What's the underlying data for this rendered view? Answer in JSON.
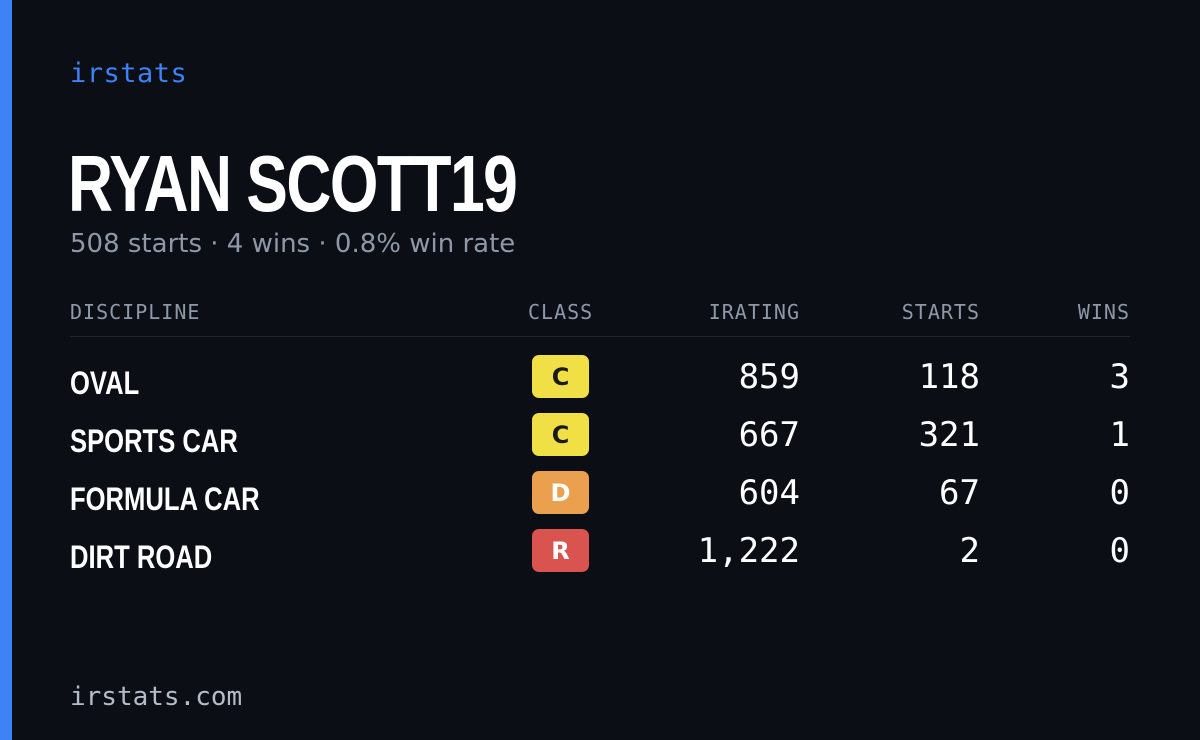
{
  "brand": "irstats",
  "accent_color": "#3d82f6",
  "player": {
    "name": "RYAN SCOTT19",
    "summary": "508 starts · 4 wins · 0.8% win rate"
  },
  "table": {
    "headers": {
      "discipline": "DISCIPLINE",
      "class": "CLASS",
      "irating": "IRATING",
      "starts": "STARTS",
      "wins": "WINS"
    },
    "rows": [
      {
        "discipline": "OVAL",
        "class": "C",
        "class_bg": "#f1e045",
        "class_fg": "#1a1a1a",
        "irating": "859",
        "starts": "118",
        "wins": "3"
      },
      {
        "discipline": "SPORTS CAR",
        "class": "C",
        "class_bg": "#f1e045",
        "class_fg": "#1a1a1a",
        "irating": "667",
        "starts": "321",
        "wins": "1"
      },
      {
        "discipline": "FORMULA CAR",
        "class": "D",
        "class_bg": "#eaa04c",
        "class_fg": "#ffffff",
        "irating": "604",
        "starts": "67",
        "wins": "0"
      },
      {
        "discipline": "DIRT ROAD",
        "class": "R",
        "class_bg": "#d9534f",
        "class_fg": "#ffffff",
        "irating": "1,222",
        "starts": "2",
        "wins": "0"
      }
    ]
  },
  "footer": {
    "url": "irstats.com"
  }
}
